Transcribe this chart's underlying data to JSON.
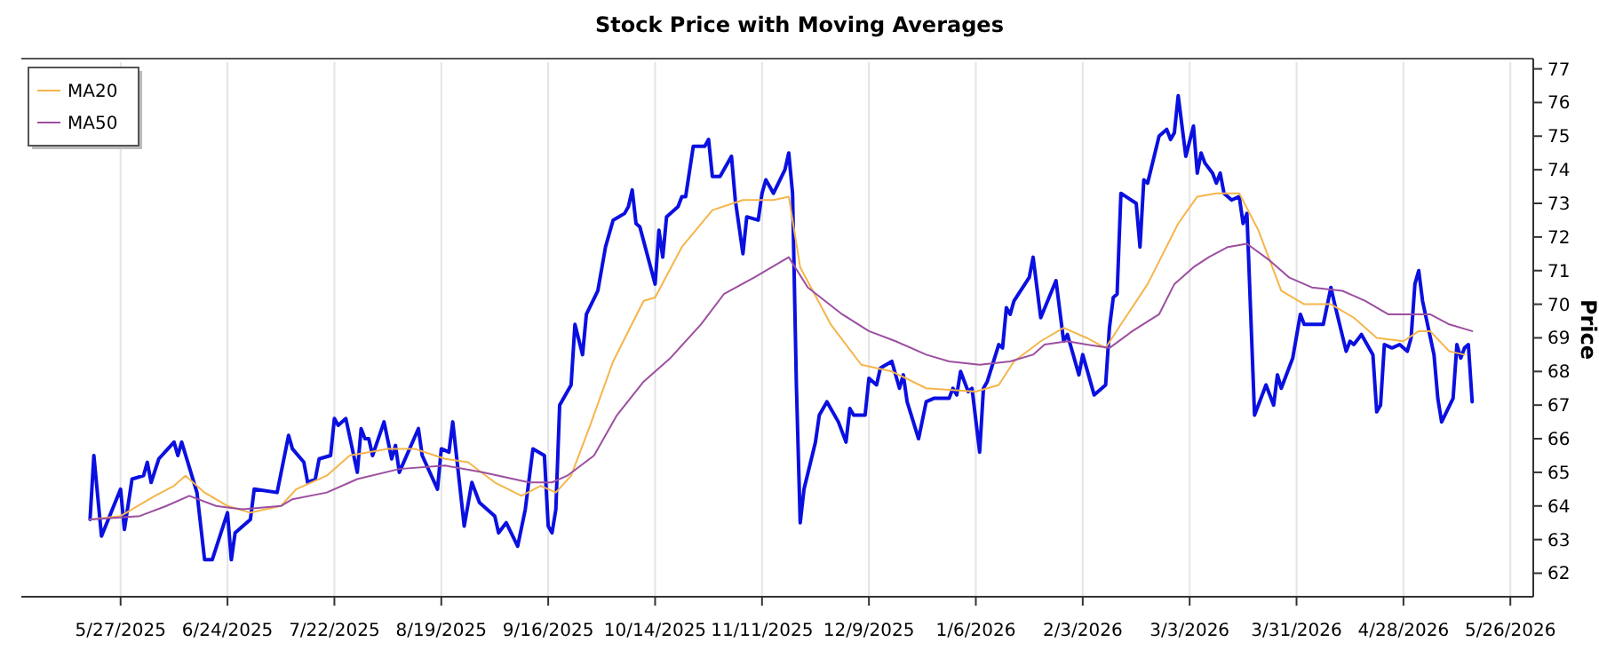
{
  "chart_data": {
    "type": "line",
    "title": "Stock Price with Moving Averages",
    "ylabel": "Price",
    "xlim": [
      "2025-05-01",
      "2026-06-01"
    ],
    "ylim": [
      61.3,
      77.2
    ],
    "xticks": [
      {
        "value": "2025-05-27",
        "label": "5/27/2025"
      },
      {
        "value": "2025-06-24",
        "label": "6/24/2025"
      },
      {
        "value": "2025-07-22",
        "label": "7/22/2025"
      },
      {
        "value": "2025-08-19",
        "label": "8/19/2025"
      },
      {
        "value": "2025-09-16",
        "label": "9/16/2025"
      },
      {
        "value": "2025-10-14",
        "label": "10/14/2025"
      },
      {
        "value": "2025-11-11",
        "label": "11/11/2025"
      },
      {
        "value": "2025-12-09",
        "label": "12/9/2025"
      },
      {
        "value": "2026-01-06",
        "label": "1/6/2026"
      },
      {
        "value": "2026-02-03",
        "label": "2/3/2026"
      },
      {
        "value": "2026-03-03",
        "label": "3/3/2026"
      },
      {
        "value": "2026-03-31",
        "label": "3/31/2026"
      },
      {
        "value": "2026-04-28",
        "label": "4/28/2026"
      },
      {
        "value": "2026-05-26",
        "label": "5/26/2026"
      }
    ],
    "yticks": [
      62,
      63,
      64,
      65,
      66,
      67,
      68,
      69,
      70,
      71,
      72,
      73,
      74,
      75,
      76,
      77
    ],
    "grid": "x",
    "legend": "top left",
    "line_style": "solid",
    "marker": "none",
    "series": [
      {
        "color": "#0a10e0",
        "x": [
          "2025-05-19",
          "2025-05-20",
          "2025-05-22",
          "2025-05-27",
          "2025-05-28",
          "2025-05-30",
          "2025-06-02",
          "2025-06-03",
          "2025-06-04",
          "2025-06-06",
          "2025-06-10",
          "2025-06-11",
          "2025-06-12",
          "2025-06-16",
          "2025-06-18",
          "2025-06-20",
          "2025-06-24",
          "2025-06-25",
          "2025-06-26",
          "2025-06-30",
          "2025-07-01",
          "2025-07-07",
          "2025-07-10",
          "2025-07-11",
          "2025-07-14",
          "2025-07-15",
          "2025-07-17",
          "2025-07-18",
          "2025-07-21",
          "2025-07-22",
          "2025-07-23",
          "2025-07-25",
          "2025-07-28",
          "2025-07-29",
          "2025-07-30",
          "2025-07-31",
          "2025-08-01",
          "2025-08-04",
          "2025-08-06",
          "2025-08-07",
          "2025-08-08",
          "2025-08-13",
          "2025-08-14",
          "2025-08-18",
          "2025-08-19",
          "2025-08-21",
          "2025-08-22",
          "2025-08-25",
          "2025-08-27",
          "2025-08-29",
          "2025-09-02",
          "2025-09-03",
          "2025-09-05",
          "2025-09-08",
          "2025-09-10",
          "2025-09-12",
          "2025-09-15",
          "2025-09-16",
          "2025-09-17",
          "2025-09-18",
          "2025-09-19",
          "2025-09-22",
          "2025-09-23",
          "2025-09-25",
          "2025-09-26",
          "2025-09-29",
          "2025-10-01",
          "2025-10-03",
          "2025-10-06",
          "2025-10-07",
          "2025-10-08",
          "2025-10-09",
          "2025-10-10",
          "2025-10-14",
          "2025-10-15",
          "2025-10-16",
          "2025-10-17",
          "2025-10-20",
          "2025-10-21",
          "2025-10-22",
          "2025-10-24",
          "2025-10-27",
          "2025-10-28",
          "2025-10-29",
          "2025-10-31",
          "2025-11-03",
          "2025-11-04",
          "2025-11-06",
          "2025-11-07",
          "2025-11-10",
          "2025-11-11",
          "2025-11-12",
          "2025-11-13",
          "2025-11-14",
          "2025-11-17",
          "2025-11-18",
          "2025-11-19",
          "2025-11-20",
          "2025-11-21",
          "2025-11-22",
          "2025-11-25",
          "2025-11-26",
          "2025-11-28",
          "2025-12-01",
          "2025-12-03",
          "2025-12-04",
          "2025-12-05",
          "2025-12-08",
          "2025-12-09",
          "2025-12-11",
          "2025-12-12",
          "2025-12-15",
          "2025-12-17",
          "2025-12-18",
          "2025-12-19",
          "2025-12-22",
          "2025-12-24",
          "2025-12-26",
          "2025-12-30",
          "2025-12-31",
          "2026-01-01",
          "2026-01-02",
          "2026-01-04",
          "2026-01-05",
          "2026-01-07",
          "2026-01-08",
          "2026-01-09",
          "2026-01-12",
          "2026-01-13",
          "2026-01-14",
          "2026-01-15",
          "2026-01-16",
          "2026-01-20",
          "2026-01-21",
          "2026-01-23",
          "2026-01-27",
          "2026-01-29",
          "2026-01-30",
          "2026-02-02",
          "2026-02-03",
          "2026-02-06",
          "2026-02-09",
          "2026-02-10",
          "2026-02-11",
          "2026-02-12",
          "2026-02-13",
          "2026-02-17",
          "2026-02-18",
          "2026-02-19",
          "2026-02-20",
          "2026-02-23",
          "2026-02-25",
          "2026-02-26",
          "2026-02-27",
          "2026-02-28",
          "2026-03-02",
          "2026-03-04",
          "2026-03-05",
          "2026-03-06",
          "2026-03-07",
          "2026-03-09",
          "2026-03-10",
          "2026-03-11",
          "2026-03-12",
          "2026-03-14",
          "2026-03-16",
          "2026-03-17",
          "2026-03-18",
          "2026-03-20",
          "2026-03-23",
          "2026-03-25",
          "2026-03-26",
          "2026-03-27",
          "2026-03-30",
          "2026-04-01",
          "2026-04-02",
          "2026-04-07",
          "2026-04-09",
          "2026-04-10",
          "2026-04-13",
          "2026-04-14",
          "2026-04-15",
          "2026-04-17",
          "2026-04-20",
          "2026-04-21",
          "2026-04-22",
          "2026-04-23",
          "2026-04-25",
          "2026-04-27",
          "2026-04-29",
          "2026-04-30",
          "2026-05-01",
          "2026-05-02",
          "2026-05-03",
          "2026-05-06",
          "2026-05-07",
          "2026-05-08",
          "2026-05-11",
          "2026-05-12",
          "2026-05-13",
          "2026-05-14",
          "2026-05-15",
          "2026-05-16"
        ],
        "values": [
          63.6,
          65.5,
          63.1,
          64.5,
          63.3,
          64.8,
          64.9,
          65.3,
          64.7,
          65.4,
          65.9,
          65.5,
          65.9,
          64.4,
          62.4,
          62.4,
          63.8,
          62.4,
          63.2,
          63.6,
          64.5,
          64.4,
          66.1,
          65.7,
          65.3,
          64.7,
          64.8,
          65.4,
          65.5,
          66.6,
          66.4,
          66.6,
          65.0,
          66.3,
          66.0,
          66.0,
          65.5,
          66.5,
          65.4,
          65.8,
          65.0,
          66.3,
          65.5,
          64.5,
          65.7,
          65.6,
          66.5,
          63.4,
          64.7,
          64.1,
          63.7,
          63.2,
          63.5,
          62.8,
          63.9,
          65.7,
          65.5,
          63.4,
          63.2,
          63.9,
          67.0,
          67.6,
          69.4,
          68.5,
          69.7,
          70.4,
          71.7,
          72.5,
          72.7,
          72.9,
          73.4,
          72.4,
          72.3,
          70.6,
          72.2,
          71.4,
          72.6,
          72.9,
          73.2,
          73.2,
          74.7,
          74.7,
          74.9,
          73.8,
          73.8,
          74.4,
          73.1,
          71.5,
          72.6,
          72.5,
          73.3,
          73.7,
          73.5,
          73.3,
          74.0,
          74.5,
          73.3,
          67.6,
          63.5,
          64.5,
          65.9,
          66.7,
          67.1,
          66.5,
          65.9,
          66.9,
          66.7,
          66.7,
          67.8,
          67.6,
          68.1,
          68.3,
          67.5,
          67.9,
          67.1,
          66.0,
          67.1,
          67.2,
          67.2,
          67.5,
          67.3,
          68.0,
          67.4,
          67.5,
          65.6,
          67.5,
          67.7,
          68.8,
          68.7,
          69.9,
          69.7,
          70.1,
          70.8,
          71.4,
          69.6,
          70.7,
          68.9,
          69.1,
          67.9,
          68.5,
          67.3,
          67.6,
          69.3,
          70.2,
          70.3,
          73.3,
          73.0,
          71.7,
          73.7,
          73.6,
          75.0,
          75.2,
          74.9,
          75.1,
          76.2,
          74.4,
          75.3,
          73.9,
          74.5,
          74.2,
          73.9,
          73.6,
          73.9,
          73.3,
          73.1,
          73.2,
          72.4,
          72.7,
          66.7,
          67.6,
          67.0,
          67.9,
          67.5,
          68.4,
          69.7,
          69.4,
          69.4,
          70.5,
          70.0,
          68.6,
          68.9,
          68.8,
          69.1,
          68.5,
          66.8,
          67.0,
          68.8,
          68.7,
          68.8,
          68.6,
          69.0,
          70.6,
          71.0,
          70.1,
          68.5,
          67.2,
          66.5,
          67.2,
          68.8,
          68.4,
          68.7,
          68.8,
          67.1
        ]
      },
      {
        "name": "MA20",
        "color": "#f5b54a",
        "x": [
          "2025-05-19",
          "2025-05-27",
          "2025-06-05",
          "2025-06-10",
          "2025-06-13",
          "2025-06-18",
          "2025-06-24",
          "2025-06-30",
          "2025-07-08",
          "2025-07-12",
          "2025-07-20",
          "2025-07-26",
          "2025-08-05",
          "2025-08-12",
          "2025-08-20",
          "2025-08-26",
          "2025-09-02",
          "2025-09-09",
          "2025-09-14",
          "2025-09-18",
          "2025-09-22",
          "2025-09-27",
          "2025-10-03",
          "2025-10-11",
          "2025-10-14",
          "2025-10-21",
          "2025-10-29",
          "2025-11-06",
          "2025-11-14",
          "2025-11-18",
          "2025-11-21",
          "2025-11-29",
          "2025-12-07",
          "2025-12-15",
          "2025-12-24",
          "2026-01-06",
          "2026-01-12",
          "2026-01-16",
          "2026-01-23",
          "2026-01-29",
          "2026-02-04",
          "2026-02-09",
          "2026-02-13",
          "2026-02-20",
          "2026-02-28",
          "2026-03-05",
          "2026-03-10",
          "2026-03-16",
          "2026-03-21",
          "2026-03-27",
          "2026-04-02",
          "2026-04-09",
          "2026-04-15",
          "2026-04-21",
          "2026-04-28",
          "2026-05-02",
          "2026-05-05",
          "2026-05-10",
          "2026-05-14"
        ],
        "values": [
          63.6,
          63.7,
          64.3,
          64.6,
          64.9,
          64.4,
          64.0,
          63.8,
          64.0,
          64.5,
          64.9,
          65.5,
          65.7,
          65.7,
          65.4,
          65.3,
          64.7,
          64.3,
          64.6,
          64.4,
          64.9,
          66.4,
          68.3,
          70.1,
          70.2,
          71.7,
          72.8,
          73.1,
          73.1,
          73.2,
          71.1,
          69.4,
          68.2,
          68.0,
          67.5,
          67.4,
          67.6,
          68.3,
          68.9,
          69.3,
          69.0,
          68.7,
          69.4,
          70.6,
          72.4,
          73.2,
          73.3,
          73.3,
          72.2,
          70.4,
          70.0,
          70.0,
          69.6,
          69.0,
          68.9,
          69.2,
          69.2,
          68.6,
          68.5
        ]
      },
      {
        "name": "MA50",
        "color": "#9c4fa0",
        "x": [
          "2025-05-19",
          "2025-06-01",
          "2025-06-08",
          "2025-06-14",
          "2025-06-21",
          "2025-06-28",
          "2025-07-08",
          "2025-07-11",
          "2025-07-20",
          "2025-07-28",
          "2025-08-08",
          "2025-08-20",
          "2025-08-30",
          "2025-09-11",
          "2025-09-17",
          "2025-09-21",
          "2025-09-28",
          "2025-10-04",
          "2025-10-11",
          "2025-10-18",
          "2025-10-26",
          "2025-11-01",
          "2025-11-09",
          "2025-11-18",
          "2025-11-23",
          "2025-12-02",
          "2025-12-09",
          "2025-12-16",
          "2025-12-24",
          "2025-12-30",
          "2026-01-07",
          "2026-01-15",
          "2026-01-21",
          "2026-01-24",
          "2026-01-30",
          "2026-02-04",
          "2026-02-10",
          "2026-02-16",
          "2026-02-23",
          "2026-02-27",
          "2026-03-04",
          "2026-03-08",
          "2026-03-13",
          "2026-03-18",
          "2026-03-24",
          "2026-03-29",
          "2026-04-04",
          "2026-04-12",
          "2026-04-18",
          "2026-04-24",
          "2026-04-30",
          "2026-05-05",
          "2026-05-10",
          "2026-05-16"
        ],
        "values": [
          63.6,
          63.7,
          64.0,
          64.3,
          64.0,
          63.9,
          64.0,
          64.2,
          64.4,
          64.8,
          65.1,
          65.2,
          65.0,
          64.7,
          64.7,
          64.9,
          65.5,
          66.7,
          67.7,
          68.4,
          69.4,
          70.3,
          70.8,
          71.4,
          70.5,
          69.7,
          69.2,
          68.9,
          68.5,
          68.3,
          68.2,
          68.3,
          68.5,
          68.8,
          68.9,
          68.8,
          68.7,
          69.2,
          69.7,
          70.6,
          71.1,
          71.4,
          71.7,
          71.8,
          71.3,
          70.8,
          70.5,
          70.4,
          70.1,
          69.7,
          69.7,
          69.7,
          69.4,
          69.2
        ]
      }
    ]
  }
}
